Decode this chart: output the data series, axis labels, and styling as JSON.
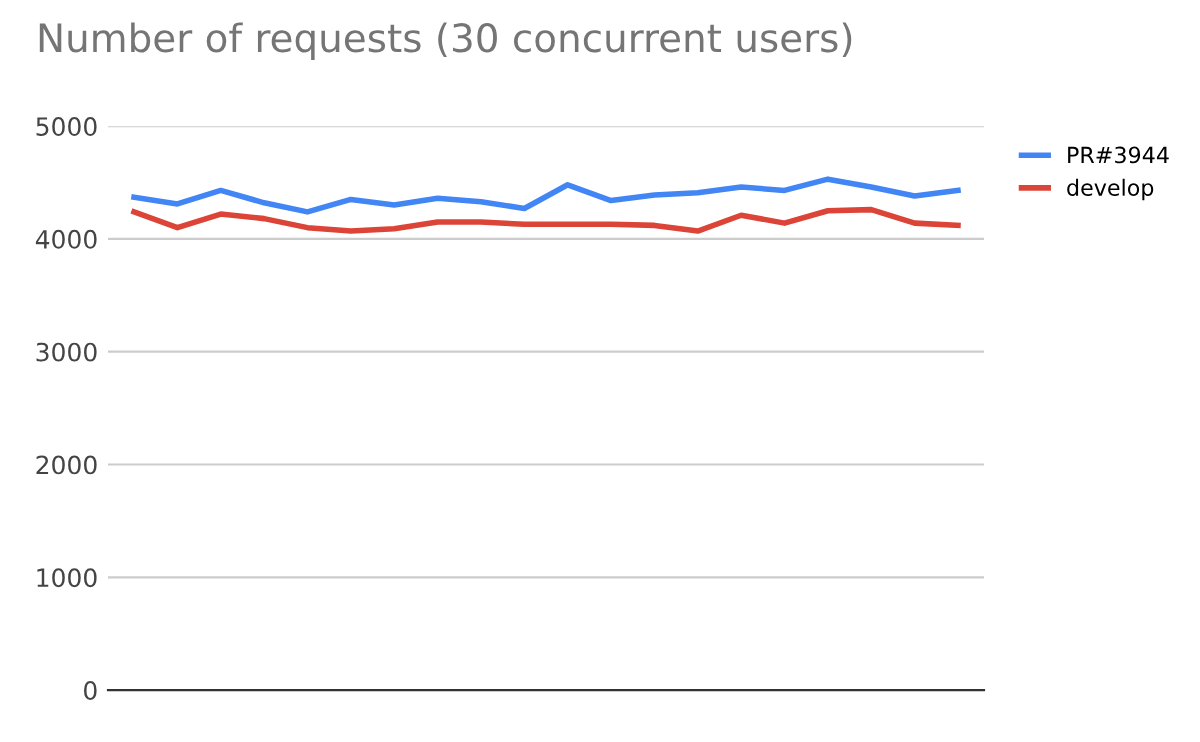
{
  "chart_data": {
    "type": "line",
    "title": "Number of requests (30 concurrent users)",
    "categories": [
      null,
      null,
      null,
      null,
      null,
      null,
      null,
      null,
      null,
      null,
      null,
      null,
      null,
      null,
      null,
      null,
      null,
      null,
      null,
      null
    ],
    "series": [
      {
        "name": "PR#3944",
        "color": "#4285f4",
        "values": [
          4370,
          4310,
          4430,
          4320,
          4240,
          4350,
          4300,
          4360,
          4330,
          4270,
          4480,
          4340,
          4390,
          4410,
          4460,
          4430,
          4530,
          4460,
          4380,
          4430
        ]
      },
      {
        "name": "develop",
        "color": "#db4437",
        "values": [
          4240,
          4100,
          4220,
          4180,
          4100,
          4070,
          4090,
          4150,
          4150,
          4130,
          4130,
          4130,
          4120,
          4070,
          4210,
          4140,
          4250,
          4260,
          4140,
          4120
        ]
      }
    ],
    "ylim": [
      0,
      5000
    ],
    "yticks": [
      0,
      1000,
      2000,
      3000,
      4000,
      5000
    ],
    "grid": "y",
    "legend": "right",
    "marker": "none",
    "line_style": "solid"
  }
}
